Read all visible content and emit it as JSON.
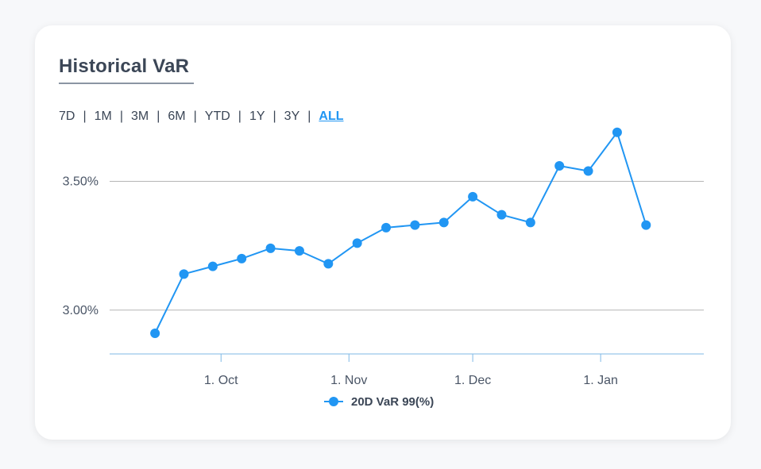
{
  "card": {
    "title": "Historical VaR"
  },
  "ranges": [
    {
      "label": "7D",
      "active": false
    },
    {
      "label": "1M",
      "active": false
    },
    {
      "label": "3M",
      "active": false
    },
    {
      "label": "6M",
      "active": false
    },
    {
      "label": "YTD",
      "active": false
    },
    {
      "label": "1Y",
      "active": false
    },
    {
      "label": "3Y",
      "active": false
    },
    {
      "label": "ALL",
      "active": true
    }
  ],
  "colors": {
    "series": "#2196f3",
    "title": "#3b4656",
    "grid": "#b5b5b5",
    "axis": "#7fb9e6"
  },
  "chart_data": {
    "type": "line",
    "title": "",
    "xlabel": "",
    "ylabel": "",
    "x_ticks": [
      {
        "label": "1. Oct",
        "date": "2023-10-01"
      },
      {
        "label": "1. Nov",
        "date": "2023-11-01"
      },
      {
        "label": "1. Dec",
        "date": "2023-12-01"
      },
      {
        "label": "1. Jan",
        "date": "2024-01-01"
      }
    ],
    "xlim": [
      "2023-09-04",
      "2024-01-26"
    ],
    "y_ticks": [
      {
        "label": "3.00%",
        "value": 3.0
      },
      {
        "label": "3.50%",
        "value": 3.5
      }
    ],
    "ylim": [
      2.83,
      3.68
    ],
    "grid": true,
    "legend": "bottom-center",
    "series": [
      {
        "name": "20D VaR 99(%)",
        "points": [
          {
            "x": "2023-09-15",
            "y": 2.91
          },
          {
            "x": "2023-09-22",
            "y": 3.14
          },
          {
            "x": "2023-09-29",
            "y": 3.17
          },
          {
            "x": "2023-10-06",
            "y": 3.2
          },
          {
            "x": "2023-10-13",
            "y": 3.24
          },
          {
            "x": "2023-10-20",
            "y": 3.23
          },
          {
            "x": "2023-10-27",
            "y": 3.18
          },
          {
            "x": "2023-11-03",
            "y": 3.26
          },
          {
            "x": "2023-11-10",
            "y": 3.32
          },
          {
            "x": "2023-11-17",
            "y": 3.33
          },
          {
            "x": "2023-11-24",
            "y": 3.34
          },
          {
            "x": "2023-12-01",
            "y": 3.44
          },
          {
            "x": "2023-12-08",
            "y": 3.37
          },
          {
            "x": "2023-12-15",
            "y": 3.34
          },
          {
            "x": "2023-12-22",
            "y": 3.56
          },
          {
            "x": "2023-12-29",
            "y": 3.54
          },
          {
            "x": "2024-01-05",
            "y": 3.69
          },
          {
            "x": "2024-01-12",
            "y": 3.33
          }
        ]
      }
    ]
  }
}
